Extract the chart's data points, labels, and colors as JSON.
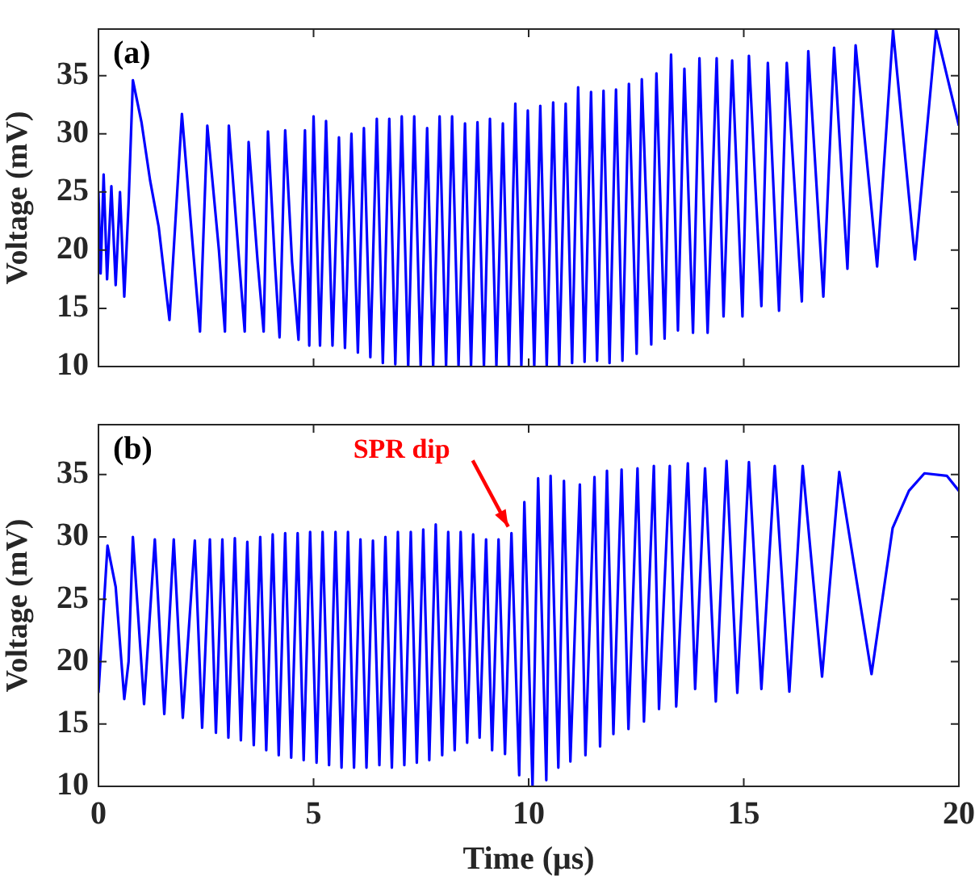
{
  "chart_data": [
    {
      "type": "line",
      "ylabel": "Voltage (mV)",
      "annotations": [
        "(a)"
      ],
      "color": "#0000ff",
      "marker": "none",
      "line_style": "solid",
      "grid": false,
      "tick_labels": "y",
      "xlim": [
        0,
        20
      ],
      "xticks": [
        0,
        5,
        10,
        15,
        20
      ],
      "ylim": [
        10,
        39
      ],
      "yticks": [
        10,
        15,
        20,
        25,
        30,
        35
      ],
      "x": [
        0,
        0.05,
        0.12,
        0.2,
        0.3,
        0.4,
        0.5,
        0.6,
        0.7,
        0.8,
        1.0,
        1.2,
        1.4,
        1.65,
        1.94,
        2.2,
        2.36,
        2.53,
        2.8,
        2.94,
        3.03,
        3.25,
        3.4,
        3.49,
        3.7,
        3.84,
        3.94,
        4.1,
        4.21,
        4.34,
        4.5,
        4.65,
        4.8,
        4.9,
        5.0,
        5.15,
        5.29,
        5.44,
        5.59,
        5.73,
        5.88,
        6.03,
        6.17,
        6.32,
        6.47,
        6.61,
        6.76,
        6.9,
        7.05,
        7.2,
        7.34,
        7.49,
        7.64,
        7.78,
        7.93,
        8.08,
        8.22,
        8.37,
        8.52,
        8.66,
        8.81,
        8.96,
        9.1,
        9.25,
        9.4,
        9.54,
        9.69,
        9.83,
        9.98,
        10.13,
        10.27,
        10.42,
        10.57,
        10.71,
        10.86,
        11.01,
        11.15,
        11.3,
        11.45,
        11.59,
        11.74,
        11.88,
        12.03,
        12.18,
        12.33,
        12.51,
        12.63,
        12.85,
        12.97,
        13.16,
        13.31,
        13.47,
        13.62,
        13.82,
        13.97,
        14.16,
        14.37,
        14.53,
        14.73,
        14.97,
        15.12,
        15.41,
        15.56,
        15.82,
        16.0,
        16.35,
        16.5,
        16.85,
        17.1,
        17.41,
        17.6,
        18.1,
        18.47,
        18.98,
        19.47,
        20
      ],
      "values": [
        25,
        18,
        26.5,
        17.5,
        25.5,
        17,
        25,
        16,
        24,
        34.6,
        31,
        26,
        22,
        14,
        31.7,
        20,
        13,
        30.7,
        20,
        13,
        30.7,
        20,
        13,
        29.3,
        19,
        13,
        30.2,
        19,
        12.5,
        30.3,
        19,
        12.3,
        30.3,
        11.8,
        31.5,
        11.8,
        31.1,
        11.8,
        29.7,
        11.6,
        30,
        11.2,
        30.5,
        10.8,
        31.3,
        10.3,
        31.3,
        10.2,
        31.5,
        10,
        31.5,
        10,
        30.5,
        10,
        31.5,
        10,
        31.5,
        10,
        30.9,
        10,
        31,
        10,
        31.3,
        10,
        30.9,
        10,
        32.6,
        10,
        32,
        10,
        32.4,
        10,
        32.7,
        10,
        32.6,
        10.3,
        34,
        10.4,
        33.6,
        10.5,
        33.7,
        10.3,
        33.8,
        10.5,
        34.3,
        11.1,
        34.7,
        11.9,
        35.2,
        12.4,
        36.8,
        13.1,
        35.6,
        12.9,
        36.5,
        12.9,
        36.5,
        14.3,
        36.3,
        14.3,
        36.7,
        15.2,
        36.1,
        14.8,
        36.1,
        15.6,
        37.1,
        16,
        37.4,
        18.4,
        37.6,
        18.6,
        38.9,
        19.2,
        38.9,
        30.7
      ]
    },
    {
      "type": "line",
      "xlabel": "Time (μs)",
      "ylabel": "Voltage (mV)",
      "annotations": [
        "(b)",
        {
          "text": "SPR dip",
          "x": 9.6,
          "y": 30.3
        }
      ],
      "color": "#0000ff",
      "marker": "none",
      "line_style": "solid",
      "grid": false,
      "xlim": [
        0,
        20
      ],
      "xticks": [
        0,
        5,
        10,
        15,
        20
      ],
      "ylim": [
        10,
        39
      ],
      "yticks": [
        10,
        15,
        20,
        25,
        30,
        35
      ],
      "x": [
        0,
        0.21,
        0.4,
        0.6,
        0.7,
        0.8,
        1.06,
        1.31,
        1.53,
        1.75,
        1.96,
        2.24,
        2.41,
        2.59,
        2.73,
        2.88,
        3.02,
        3.17,
        3.31,
        3.46,
        3.61,
        3.76,
        3.9,
        4.05,
        4.19,
        4.34,
        4.48,
        4.63,
        4.77,
        4.92,
        5.07,
        5.21,
        5.36,
        5.51,
        5.65,
        5.8,
        5.94,
        6.09,
        6.23,
        6.38,
        6.53,
        6.67,
        6.82,
        6.96,
        7.11,
        7.26,
        7.4,
        7.55,
        7.69,
        7.84,
        7.99,
        8.13,
        8.28,
        8.42,
        8.57,
        8.71,
        8.86,
        9.01,
        9.15,
        9.3,
        9.45,
        9.6,
        9.78,
        9.9,
        10.09,
        10.22,
        10.41,
        10.51,
        10.69,
        10.82,
        10.97,
        11.19,
        11.32,
        11.53,
        11.66,
        11.82,
        11.97,
        12.16,
        12.32,
        12.53,
        12.68,
        12.91,
        13.03,
        13.28,
        13.43,
        13.7,
        13.87,
        14.1,
        14.35,
        14.6,
        14.85,
        15.12,
        15.41,
        15.72,
        16.06,
        16.37,
        16.82,
        17.22,
        17.97,
        18.46,
        18.84,
        19.2,
        19.72,
        20
      ],
      "values": [
        17.5,
        29.3,
        26,
        17,
        20,
        30,
        16.6,
        29.8,
        15.8,
        29.8,
        15.5,
        29.7,
        14.7,
        29.8,
        14.3,
        29.8,
        13.9,
        29.9,
        13.7,
        29.6,
        13.3,
        30,
        12.9,
        30.2,
        12.5,
        30.3,
        12.3,
        30.3,
        12.1,
        30.4,
        11.9,
        30.4,
        11.7,
        30.4,
        11.5,
        30.4,
        11.5,
        29.8,
        11.5,
        29.7,
        11.7,
        30,
        11.5,
        30.4,
        11.7,
        30.4,
        11.9,
        30.6,
        12.1,
        31,
        12.5,
        30.4,
        12.9,
        30.4,
        13.5,
        30.2,
        13.9,
        29.8,
        12.9,
        29.8,
        12.6,
        30.3,
        10.9,
        32.8,
        10,
        34.7,
        10.5,
        34.9,
        11.5,
        34.5,
        12,
        34.2,
        12.5,
        34.8,
        13.2,
        35.3,
        14.2,
        35.4,
        14.6,
        35.5,
        15.2,
        35.7,
        16.2,
        35.7,
        16.4,
        35.9,
        17.8,
        35.5,
        16.8,
        36.1,
        17.5,
        36,
        17.8,
        35.7,
        17.6,
        35.7,
        18.8,
        35.2,
        19,
        30.7,
        33.7,
        35.1,
        34.9,
        33.7
      ]
    }
  ]
}
